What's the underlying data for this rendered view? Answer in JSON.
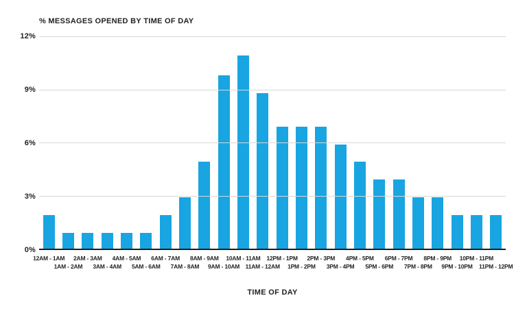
{
  "chart_data": {
    "type": "bar",
    "title": "% MESSAGES OPENED BY TIME OF DAY",
    "xlabel": "TIME OF DAY",
    "ylabel": "",
    "categories": [
      "12AM - 1AM",
      "1AM - 2AM",
      "2AM - 3AM",
      "3AM - 4AM",
      "4AM - 5AM",
      "5AM - 6AM",
      "6AM - 7AM",
      "7AM - 8AM",
      "8AM - 9AM",
      "9AM - 10AM",
      "10AM - 11AM",
      "11AM - 12AM",
      "12PM - 1PM",
      "1PM - 2PM",
      "2PM - 3PM",
      "3PM - 4PM",
      "4PM - 5PM",
      "5PM - 6PM",
      "6PM - 7PM",
      "7PM - 8PM",
      "8PM - 9PM",
      "9PM - 10PM",
      "10PM - 11PM",
      "11PM - 12PM"
    ],
    "values": [
      1.9,
      0.9,
      0.9,
      0.9,
      0.9,
      0.9,
      1.9,
      2.9,
      4.9,
      9.8,
      10.9,
      8.8,
      6.9,
      6.9,
      6.9,
      5.9,
      4.9,
      3.9,
      3.9,
      2.9,
      2.9,
      1.9,
      1.9,
      1.9
    ],
    "ylim": [
      0,
      12
    ],
    "yticks_top_to_bottom": [
      "12%",
      "9%",
      "6%",
      "3%",
      "0%"
    ],
    "grid": true,
    "legend": "none",
    "x_label_layout": "staggered-two-rows"
  },
  "colors": {
    "bar": "#18a5e1",
    "gridline": "#d8d8d8",
    "axis_line": "#1b1b1b",
    "text": "#231f20",
    "background": "#ffffff"
  }
}
